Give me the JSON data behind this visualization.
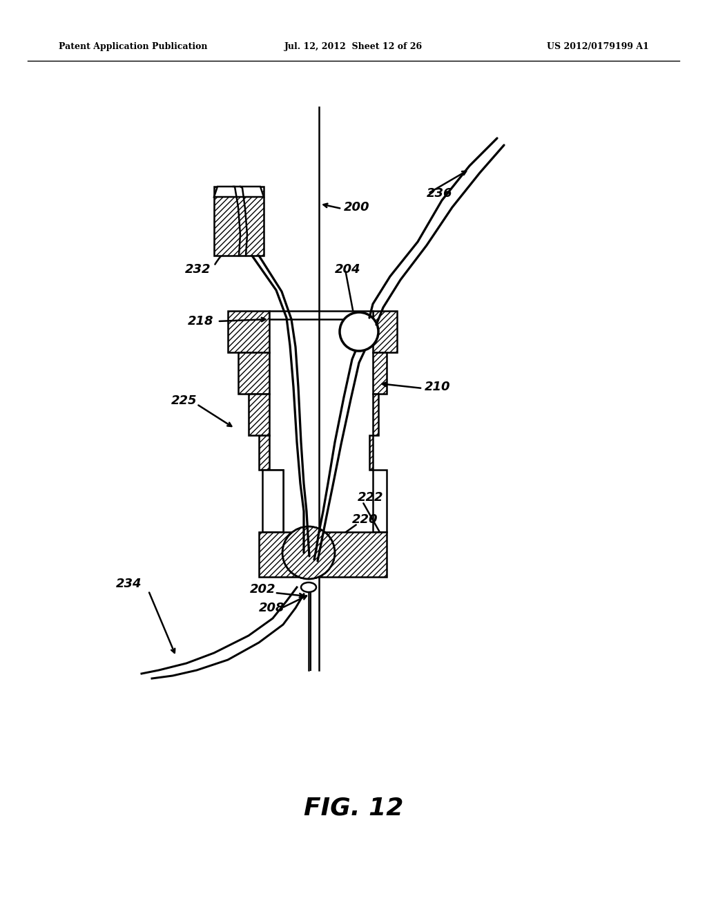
{
  "background_color": "#ffffff",
  "header_left": "Patent Application Publication",
  "header_mid": "Jul. 12, 2012  Sheet 12 of 26",
  "header_right": "US 2012/0179199 A1",
  "fig_label": "FIG. 12",
  "line_color": "#000000",
  "lw": 1.8
}
